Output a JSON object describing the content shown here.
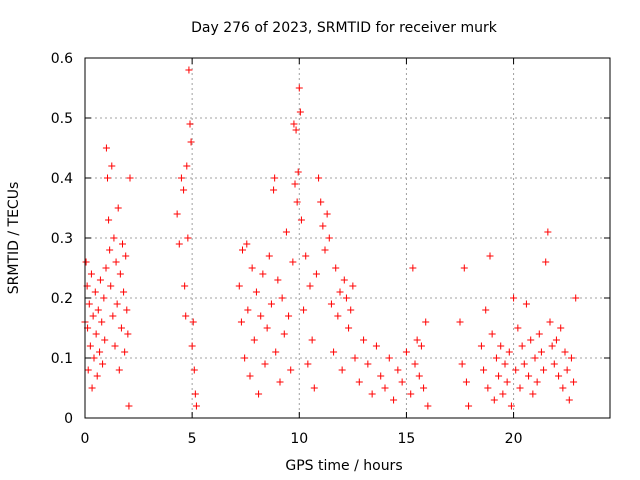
{
  "chart_data": {
    "type": "scatter",
    "title": "Day 276 of 2023, SRMTID for receiver murk",
    "xlabel": "GPS time / hours",
    "ylabel": "SRMTID / TECUs",
    "xlim": [
      0,
      24.5
    ],
    "ylim": [
      0,
      0.6
    ],
    "x_ticks": [
      0,
      5,
      10,
      15,
      20
    ],
    "x_tick_labels": [
      "0",
      "5",
      "10",
      "15",
      "20"
    ],
    "y_ticks": [
      0,
      0.1,
      0.2,
      0.3,
      0.4,
      0.5,
      0.6
    ],
    "y_tick_labels": [
      "0",
      "0.1",
      "0.2",
      "0.3",
      "0.4",
      "0.5",
      "0.6"
    ],
    "grid": true,
    "legend": "none",
    "marker": "plus",
    "color": "#ff0000",
    "series": [
      {
        "name": "SRMTID",
        "points": [
          [
            0.0,
            0.16
          ],
          [
            0.05,
            0.26
          ],
          [
            0.1,
            0.22
          ],
          [
            0.12,
            0.15
          ],
          [
            0.15,
            0.08
          ],
          [
            0.2,
            0.19
          ],
          [
            0.25,
            0.12
          ],
          [
            0.3,
            0.24
          ],
          [
            0.33,
            0.05
          ],
          [
            0.38,
            0.17
          ],
          [
            0.42,
            0.1
          ],
          [
            0.48,
            0.21
          ],
          [
            0.52,
            0.14
          ],
          [
            0.57,
            0.07
          ],
          [
            0.62,
            0.18
          ],
          [
            0.68,
            0.11
          ],
          [
            0.72,
            0.23
          ],
          [
            0.78,
            0.16
          ],
          [
            0.82,
            0.09
          ],
          [
            0.88,
            0.2
          ],
          [
            0.92,
            0.13
          ],
          [
            0.98,
            0.25
          ],
          [
            1.0,
            0.45
          ],
          [
            1.05,
            0.4
          ],
          [
            1.1,
            0.33
          ],
          [
            1.15,
            0.28
          ],
          [
            1.2,
            0.22
          ],
          [
            1.25,
            0.42
          ],
          [
            1.3,
            0.17
          ],
          [
            1.35,
            0.3
          ],
          [
            1.4,
            0.12
          ],
          [
            1.45,
            0.26
          ],
          [
            1.5,
            0.19
          ],
          [
            1.55,
            0.35
          ],
          [
            1.6,
            0.08
          ],
          [
            1.65,
            0.24
          ],
          [
            1.7,
            0.15
          ],
          [
            1.75,
            0.29
          ],
          [
            1.8,
            0.21
          ],
          [
            1.85,
            0.11
          ],
          [
            1.9,
            0.27
          ],
          [
            1.95,
            0.18
          ],
          [
            2.0,
            0.14
          ],
          [
            2.05,
            0.02
          ],
          [
            2.1,
            0.4
          ],
          [
            4.3,
            0.34
          ],
          [
            4.4,
            0.29
          ],
          [
            4.5,
            0.4
          ],
          [
            4.6,
            0.38
          ],
          [
            4.65,
            0.22
          ],
          [
            4.7,
            0.17
          ],
          [
            4.75,
            0.42
          ],
          [
            4.8,
            0.3
          ],
          [
            4.85,
            0.58
          ],
          [
            4.9,
            0.49
          ],
          [
            4.95,
            0.46
          ],
          [
            5.0,
            0.12
          ],
          [
            5.05,
            0.16
          ],
          [
            5.1,
            0.08
          ],
          [
            5.15,
            0.04
          ],
          [
            5.2,
            0.02
          ],
          [
            7.2,
            0.22
          ],
          [
            7.3,
            0.16
          ],
          [
            7.35,
            0.28
          ],
          [
            7.45,
            0.1
          ],
          [
            7.55,
            0.29
          ],
          [
            7.6,
            0.18
          ],
          [
            7.7,
            0.07
          ],
          [
            7.8,
            0.25
          ],
          [
            7.9,
            0.13
          ],
          [
            8.0,
            0.21
          ],
          [
            8.1,
            0.04
          ],
          [
            8.2,
            0.17
          ],
          [
            8.3,
            0.24
          ],
          [
            8.4,
            0.09
          ],
          [
            8.5,
            0.15
          ],
          [
            8.6,
            0.27
          ],
          [
            8.7,
            0.19
          ],
          [
            8.8,
            0.38
          ],
          [
            8.85,
            0.4
          ],
          [
            8.9,
            0.11
          ],
          [
            9.0,
            0.23
          ],
          [
            9.1,
            0.06
          ],
          [
            9.2,
            0.2
          ],
          [
            9.3,
            0.14
          ],
          [
            9.4,
            0.31
          ],
          [
            9.5,
            0.17
          ],
          [
            9.6,
            0.08
          ],
          [
            9.7,
            0.26
          ],
          [
            9.75,
            0.49
          ],
          [
            9.8,
            0.39
          ],
          [
            9.85,
            0.48
          ],
          [
            9.9,
            0.36
          ],
          [
            9.95,
            0.41
          ],
          [
            10.0,
            0.55
          ],
          [
            10.05,
            0.51
          ],
          [
            10.1,
            0.33
          ],
          [
            10.2,
            0.18
          ],
          [
            10.3,
            0.27
          ],
          [
            10.4,
            0.09
          ],
          [
            10.5,
            0.22
          ],
          [
            10.6,
            0.13
          ],
          [
            10.7,
            0.05
          ],
          [
            10.8,
            0.24
          ],
          [
            10.9,
            0.4
          ],
          [
            11.0,
            0.36
          ],
          [
            11.1,
            0.32
          ],
          [
            11.2,
            0.28
          ],
          [
            11.3,
            0.34
          ],
          [
            11.4,
            0.3
          ],
          [
            11.5,
            0.19
          ],
          [
            11.6,
            0.11
          ],
          [
            11.7,
            0.25
          ],
          [
            11.8,
            0.17
          ],
          [
            11.9,
            0.21
          ],
          [
            12.0,
            0.08
          ],
          [
            12.1,
            0.23
          ],
          [
            12.2,
            0.2
          ],
          [
            12.3,
            0.15
          ],
          [
            12.4,
            0.18
          ],
          [
            12.5,
            0.22
          ],
          [
            12.6,
            0.1
          ],
          [
            12.8,
            0.06
          ],
          [
            13.0,
            0.13
          ],
          [
            13.2,
            0.09
          ],
          [
            13.4,
            0.04
          ],
          [
            13.6,
            0.12
          ],
          [
            13.8,
            0.07
          ],
          [
            14.0,
            0.05
          ],
          [
            14.2,
            0.1
          ],
          [
            14.4,
            0.03
          ],
          [
            14.6,
            0.08
          ],
          [
            14.8,
            0.06
          ],
          [
            15.0,
            0.11
          ],
          [
            15.2,
            0.04
          ],
          [
            15.3,
            0.25
          ],
          [
            15.4,
            0.09
          ],
          [
            15.5,
            0.13
          ],
          [
            15.6,
            0.07
          ],
          [
            15.7,
            0.12
          ],
          [
            15.8,
            0.05
          ],
          [
            15.9,
            0.16
          ],
          [
            16.0,
            0.02
          ],
          [
            17.5,
            0.16
          ],
          [
            17.6,
            0.09
          ],
          [
            17.7,
            0.25
          ],
          [
            17.8,
            0.06
          ],
          [
            17.9,
            0.02
          ],
          [
            18.5,
            0.12
          ],
          [
            18.6,
            0.08
          ],
          [
            18.7,
            0.18
          ],
          [
            18.8,
            0.05
          ],
          [
            18.9,
            0.27
          ],
          [
            19.0,
            0.14
          ],
          [
            19.1,
            0.03
          ],
          [
            19.2,
            0.1
          ],
          [
            19.3,
            0.07
          ],
          [
            19.4,
            0.12
          ],
          [
            19.5,
            0.04
          ],
          [
            19.6,
            0.09
          ],
          [
            19.7,
            0.06
          ],
          [
            19.8,
            0.11
          ],
          [
            19.9,
            0.02
          ],
          [
            20.0,
            0.2
          ],
          [
            20.1,
            0.08
          ],
          [
            20.2,
            0.15
          ],
          [
            20.3,
            0.05
          ],
          [
            20.4,
            0.12
          ],
          [
            20.5,
            0.09
          ],
          [
            20.6,
            0.19
          ],
          [
            20.7,
            0.07
          ],
          [
            20.8,
            0.13
          ],
          [
            20.9,
            0.04
          ],
          [
            21.0,
            0.1
          ],
          [
            21.1,
            0.06
          ],
          [
            21.2,
            0.14
          ],
          [
            21.3,
            0.11
          ],
          [
            21.4,
            0.08
          ],
          [
            21.5,
            0.26
          ],
          [
            21.6,
            0.31
          ],
          [
            21.7,
            0.16
          ],
          [
            21.8,
            0.12
          ],
          [
            21.9,
            0.09
          ],
          [
            22.0,
            0.13
          ],
          [
            22.1,
            0.07
          ],
          [
            22.2,
            0.15
          ],
          [
            22.3,
            0.05
          ],
          [
            22.4,
            0.11
          ],
          [
            22.5,
            0.08
          ],
          [
            22.6,
            0.03
          ],
          [
            22.7,
            0.1
          ],
          [
            22.8,
            0.06
          ],
          [
            22.9,
            0.2
          ]
        ]
      }
    ]
  }
}
